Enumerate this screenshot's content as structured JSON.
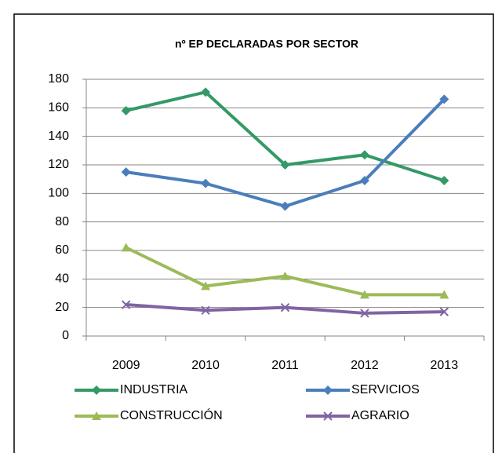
{
  "chart_data": {
    "type": "line",
    "title": "nº EP DECLARADAS POR SECTOR",
    "categories": [
      "2009",
      "2010",
      "2011",
      "2012",
      "2013"
    ],
    "series": [
      {
        "name": "INDUSTRIA",
        "color": "#339966",
        "marker": "diamond",
        "values": [
          158,
          171,
          120,
          127,
          109
        ]
      },
      {
        "name": "SERVICIOS",
        "color": "#4a7ebb",
        "marker": "diamond",
        "values": [
          115,
          107,
          91,
          109,
          166
        ]
      },
      {
        "name": "CONSTRUCCIÓN",
        "color": "#9bbb59",
        "marker": "triangle",
        "values": [
          62,
          35,
          42,
          29,
          29
        ]
      },
      {
        "name": "AGRARIO",
        "color": "#8064a2",
        "marker": "x",
        "values": [
          22,
          18,
          20,
          16,
          17
        ]
      }
    ],
    "ylim": [
      0,
      180
    ],
    "yticks": [
      0,
      20,
      40,
      60,
      80,
      100,
      120,
      140,
      160,
      180
    ],
    "grid": true
  }
}
